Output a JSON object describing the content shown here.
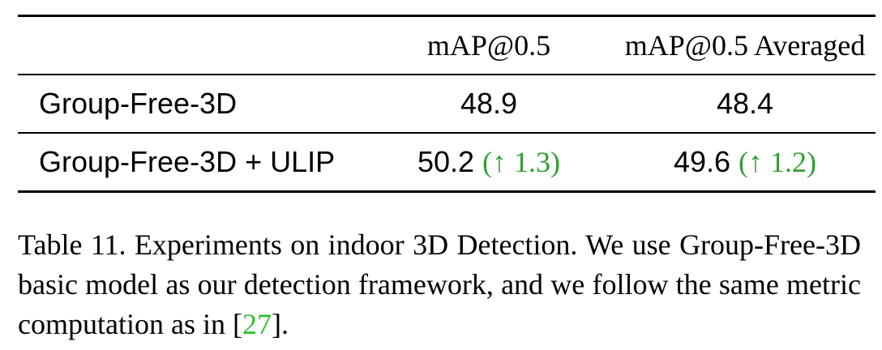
{
  "table": {
    "headers": [
      "",
      "mAP@0.5",
      "mAP@0.5 Averaged"
    ],
    "rows": [
      {
        "method": "Group-Free-3D",
        "map05": "48.9",
        "map05_delta": "",
        "map05_avg": "48.4",
        "map05_avg_delta": ""
      },
      {
        "method": "Group-Free-3D + ULIP",
        "map05": "50.2",
        "map05_delta": "(↑ 1.3)",
        "map05_avg": "49.6",
        "map05_avg_delta": "(↑ 1.2)"
      }
    ]
  },
  "caption": {
    "text_before_ref": "Table 11. Experiments on indoor 3D Detection. We use Group-Free-3D basic model as our detection framework, and we follow the same metric computation as in [",
    "ref": "27",
    "text_after_ref": "]."
  },
  "colors": {
    "delta": "#2f9f2f",
    "ref": "#2fbf2f"
  }
}
